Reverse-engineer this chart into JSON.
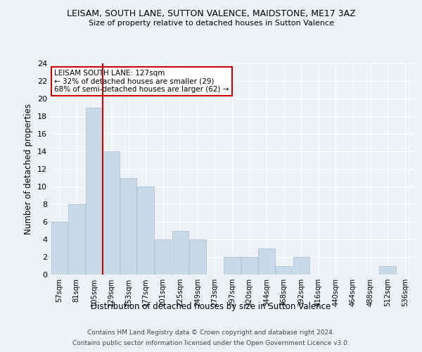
{
  "title": "LEISAM, SOUTH LANE, SUTTON VALENCE, MAIDSTONE, ME17 3AZ",
  "subtitle": "Size of property relative to detached houses in Sutton Valence",
  "xlabel": "Distribution of detached houses by size in Sutton Valence",
  "ylabel": "Number of detached properties",
  "categories": [
    "57sqm",
    "81sqm",
    "105sqm",
    "129sqm",
    "153sqm",
    "177sqm",
    "201sqm",
    "225sqm",
    "249sqm",
    "273sqm",
    "297sqm",
    "320sqm",
    "344sqm",
    "368sqm",
    "392sqm",
    "416sqm",
    "440sqm",
    "464sqm",
    "488sqm",
    "512sqm",
    "536sqm"
  ],
  "values": [
    6,
    8,
    19,
    14,
    11,
    10,
    4,
    5,
    4,
    0,
    2,
    2,
    3,
    1,
    2,
    0,
    0,
    0,
    0,
    1,
    0
  ],
  "bar_color": "#c8d9e8",
  "bar_edge_color": "#adc4d8",
  "vline_x_pos": 2.5,
  "vline_color": "#cc0000",
  "annotation_text": "LEISAM SOUTH LANE: 127sqm\n← 32% of detached houses are smaller (29)\n68% of semi-detached houses are larger (62) →",
  "annotation_box_facecolor": "#ffffff",
  "annotation_box_edgecolor": "#cc0000",
  "ylim": [
    0,
    24
  ],
  "yticks": [
    0,
    2,
    4,
    6,
    8,
    10,
    12,
    14,
    16,
    18,
    20,
    22,
    24
  ],
  "bg_color": "#eef2f7",
  "grid_color": "#ffffff",
  "footer_line1": "Contains HM Land Registry data © Crown copyright and database right 2024.",
  "footer_line2": "Contains public sector information licensed under the Open Government Licence v3.0."
}
